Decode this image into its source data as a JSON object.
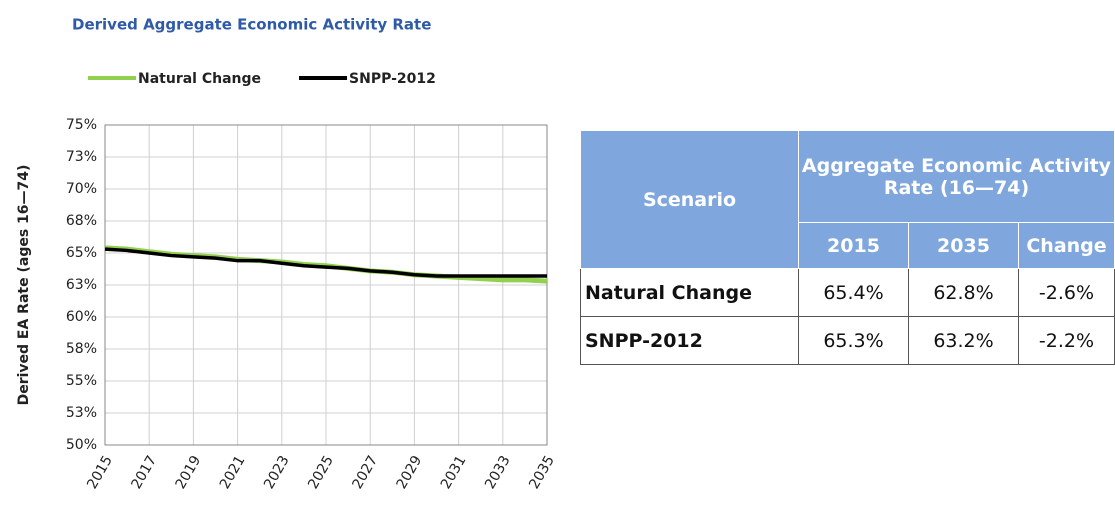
{
  "chart_data": {
    "type": "line",
    "title": "Derived Aggregate Economic Activity Rate",
    "y_label": "Derived EA Rate (ages 16—74)",
    "x": [
      2015,
      2016,
      2017,
      2018,
      2019,
      2020,
      2021,
      2022,
      2023,
      2024,
      2025,
      2026,
      2027,
      2028,
      2029,
      2030,
      2031,
      2032,
      2033,
      2034,
      2035
    ],
    "xlim": [
      2015,
      2035
    ],
    "xticks": [
      2015,
      2017,
      2019,
      2021,
      2023,
      2025,
      2027,
      2029,
      2031,
      2033,
      2035
    ],
    "ylim": [
      50,
      75
    ],
    "yticks": [
      {
        "value": 50,
        "label": "50%"
      },
      {
        "value": 52.5,
        "label": "53%"
      },
      {
        "value": 55,
        "label": "55%"
      },
      {
        "value": 57.5,
        "label": "58%"
      },
      {
        "value": 60,
        "label": "60%"
      },
      {
        "value": 62.5,
        "label": "63%"
      },
      {
        "value": 65,
        "label": "65%"
      },
      {
        "value": 67.5,
        "label": "68%"
      },
      {
        "value": 70,
        "label": "70%"
      },
      {
        "value": 72.5,
        "label": "73%"
      },
      {
        "value": 75,
        "label": "75%"
      }
    ],
    "grid": true,
    "legend": "top",
    "series": [
      {
        "name": "Natural Change",
        "color": "#92d050",
        "values": [
          65.4,
          65.3,
          65.1,
          64.9,
          64.8,
          64.7,
          64.5,
          64.4,
          64.3,
          64.1,
          64.0,
          63.8,
          63.6,
          63.5,
          63.3,
          63.2,
          63.1,
          63.0,
          62.9,
          62.9,
          62.8
        ]
      },
      {
        "name": "SNPP-2012",
        "color": "#000000",
        "values": [
          65.3,
          65.2,
          65.0,
          64.8,
          64.7,
          64.6,
          64.4,
          64.4,
          64.2,
          64.0,
          63.9,
          63.8,
          63.6,
          63.5,
          63.3,
          63.2,
          63.2,
          63.2,
          63.2,
          63.2,
          63.2
        ]
      }
    ]
  },
  "table": {
    "header": [
      "Scenario",
      "Aggregate Economic Activity Rate (16—74)"
    ],
    "subheader": [
      "2015",
      "2035",
      "Change"
    ],
    "rows": [
      [
        "Natural Change",
        "65.4%",
        "62.8%",
        "-2.6%"
      ],
      [
        "SNPP-2012",
        "65.3%",
        "63.2%",
        "-2.2%"
      ]
    ]
  }
}
